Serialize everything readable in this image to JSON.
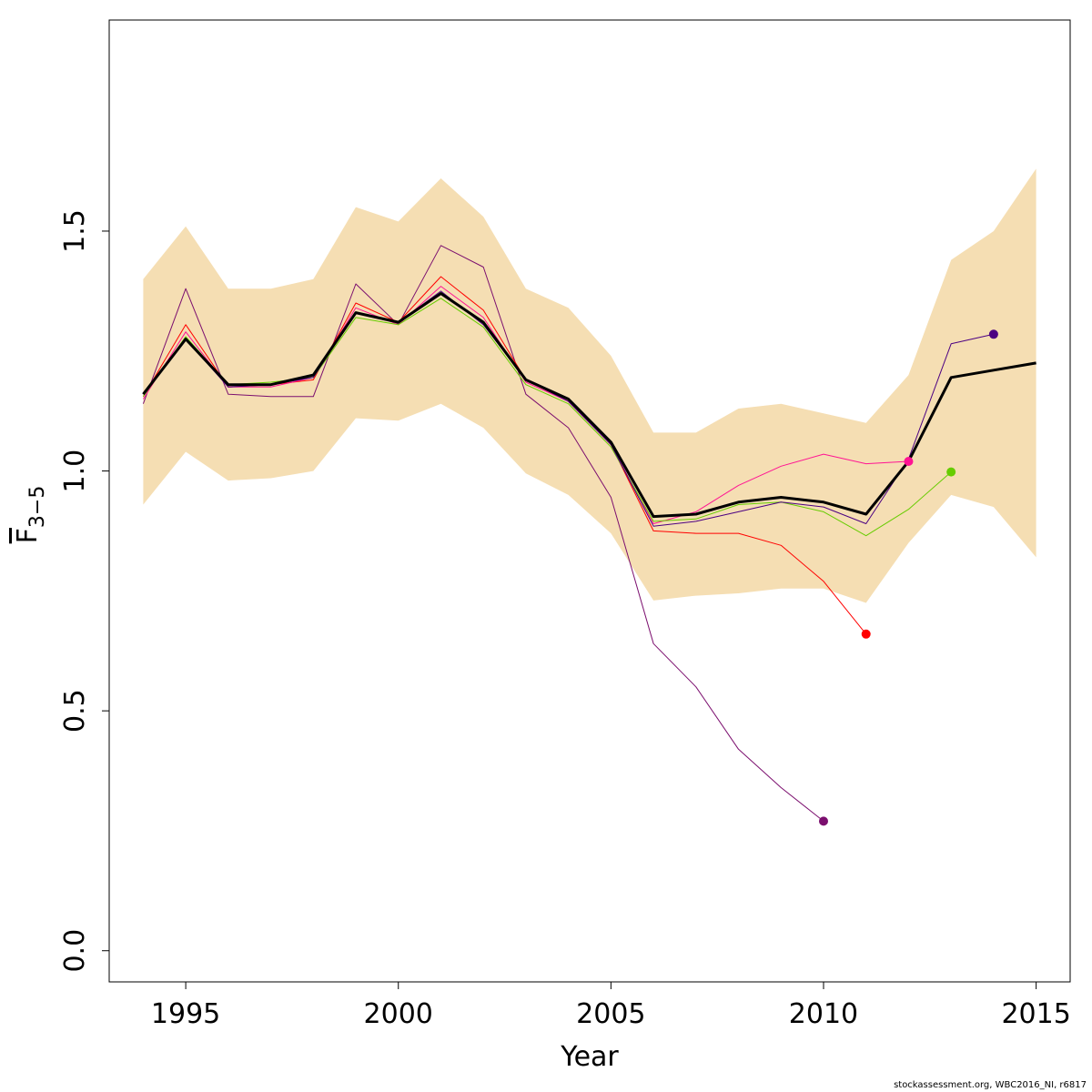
{
  "chart_data": {
    "type": "line",
    "title": "",
    "xlabel": "Year",
    "ylabel": "F̅ 3−5",
    "ylabel_main": "F",
    "ylabel_sub": "3−5",
    "xlim": [
      1993.2,
      2015.8
    ],
    "ylim": [
      -0.065,
      1.94
    ],
    "x_ticks": [
      1995,
      2000,
      2005,
      2010,
      2015
    ],
    "y_ticks": [
      0.0,
      0.5,
      1.0,
      1.5
    ],
    "y_tick_labels": [
      "0.0",
      "0.5",
      "1.0",
      "1.5"
    ],
    "grid": false,
    "legend": "none",
    "band": {
      "color": "#F5DEB3",
      "x": [
        1994,
        1995,
        1996,
        1997,
        1998,
        1999,
        2000,
        2001,
        2002,
        2003,
        2004,
        2005,
        2006,
        2007,
        2008,
        2009,
        2010,
        2011,
        2012,
        2013,
        2014,
        2015
      ],
      "upper": [
        1.4,
        1.51,
        1.38,
        1.38,
        1.4,
        1.55,
        1.52,
        1.61,
        1.53,
        1.38,
        1.34,
        1.24,
        1.08,
        1.08,
        1.13,
        1.14,
        1.12,
        1.1,
        1.2,
        1.44,
        1.5,
        1.63
      ],
      "lower": [
        0.93,
        1.04,
        0.98,
        0.985,
        1.0,
        1.11,
        1.105,
        1.14,
        1.09,
        0.995,
        0.95,
        0.87,
        0.73,
        0.74,
        0.745,
        0.755,
        0.755,
        0.725,
        0.85,
        0.95,
        0.925,
        0.82
      ]
    },
    "series": [
      {
        "color": "#000000",
        "width": 3,
        "endpoint": false,
        "x": [
          1994,
          1995,
          1996,
          1997,
          1998,
          1999,
          2000,
          2001,
          2002,
          2003,
          2004,
          2005,
          2006,
          2007,
          2008,
          2009,
          2010,
          2011,
          2012,
          2013,
          2014,
          2015
        ],
        "values": [
          1.16,
          1.275,
          1.18,
          1.18,
          1.2,
          1.33,
          1.31,
          1.37,
          1.31,
          1.19,
          1.15,
          1.06,
          0.905,
          0.91,
          0.935,
          0.945,
          0.935,
          0.91,
          1.02,
          1.195,
          1.21,
          1.225
        ]
      },
      {
        "color": "#7B0E6E",
        "width": 1,
        "endpoint": true,
        "x": [
          1994,
          1995,
          1996,
          1997,
          1998,
          1999,
          2000,
          2001,
          2002,
          2003,
          2004,
          2005,
          2006,
          2007,
          2008,
          2009,
          2010
        ],
        "values": [
          1.14,
          1.38,
          1.16,
          1.155,
          1.155,
          1.39,
          1.305,
          1.47,
          1.425,
          1.16,
          1.09,
          0.945,
          0.64,
          0.55,
          0.42,
          0.34,
          0.27
        ]
      },
      {
        "color": "#FF0000",
        "width": 1,
        "endpoint": true,
        "x": [
          1994,
          1995,
          1996,
          1997,
          1998,
          1999,
          2000,
          2001,
          2002,
          2003,
          2004,
          2005,
          2006,
          2007,
          2008,
          2009,
          2010,
          2011
        ],
        "values": [
          1.155,
          1.305,
          1.175,
          1.18,
          1.19,
          1.35,
          1.31,
          1.405,
          1.335,
          1.19,
          1.145,
          1.055,
          0.875,
          0.87,
          0.87,
          0.845,
          0.77,
          0.66
        ]
      },
      {
        "color": "#FF1493",
        "width": 1,
        "endpoint": true,
        "x": [
          1994,
          1995,
          1996,
          1997,
          1998,
          1999,
          2000,
          2001,
          2002,
          2003,
          2004,
          2005,
          2006,
          2007,
          2008,
          2009,
          2010,
          2011,
          2012
        ],
        "values": [
          1.15,
          1.29,
          1.175,
          1.175,
          1.195,
          1.34,
          1.305,
          1.385,
          1.32,
          1.185,
          1.145,
          1.055,
          0.89,
          0.915,
          0.97,
          1.01,
          1.035,
          1.015,
          1.02
        ]
      },
      {
        "color": "#66CC00",
        "width": 1,
        "endpoint": true,
        "x": [
          1994,
          1995,
          1996,
          1997,
          1998,
          1999,
          2000,
          2001,
          2002,
          2003,
          2004,
          2005,
          2006,
          2007,
          2008,
          2009,
          2010,
          2011,
          2012,
          2013
        ],
        "values": [
          1.155,
          1.28,
          1.18,
          1.185,
          1.195,
          1.32,
          1.305,
          1.36,
          1.3,
          1.18,
          1.14,
          1.05,
          0.895,
          0.9,
          0.93,
          0.935,
          0.915,
          0.865,
          0.92,
          0.998
        ]
      },
      {
        "color": "#4B0082",
        "width": 1,
        "endpoint": true,
        "x": [
          1994,
          1995,
          1996,
          1997,
          1998,
          1999,
          2000,
          2001,
          2002,
          2003,
          2004,
          2005,
          2006,
          2007,
          2008,
          2009,
          2010,
          2011,
          2012,
          2013,
          2014
        ],
        "values": [
          1.16,
          1.275,
          1.175,
          1.18,
          1.195,
          1.33,
          1.31,
          1.375,
          1.305,
          1.19,
          1.145,
          1.055,
          0.885,
          0.895,
          0.915,
          0.935,
          0.925,
          0.89,
          1.025,
          1.265,
          1.285
        ]
      }
    ]
  },
  "credit": "stockassessment.org, WBC2016_NI, r6817"
}
